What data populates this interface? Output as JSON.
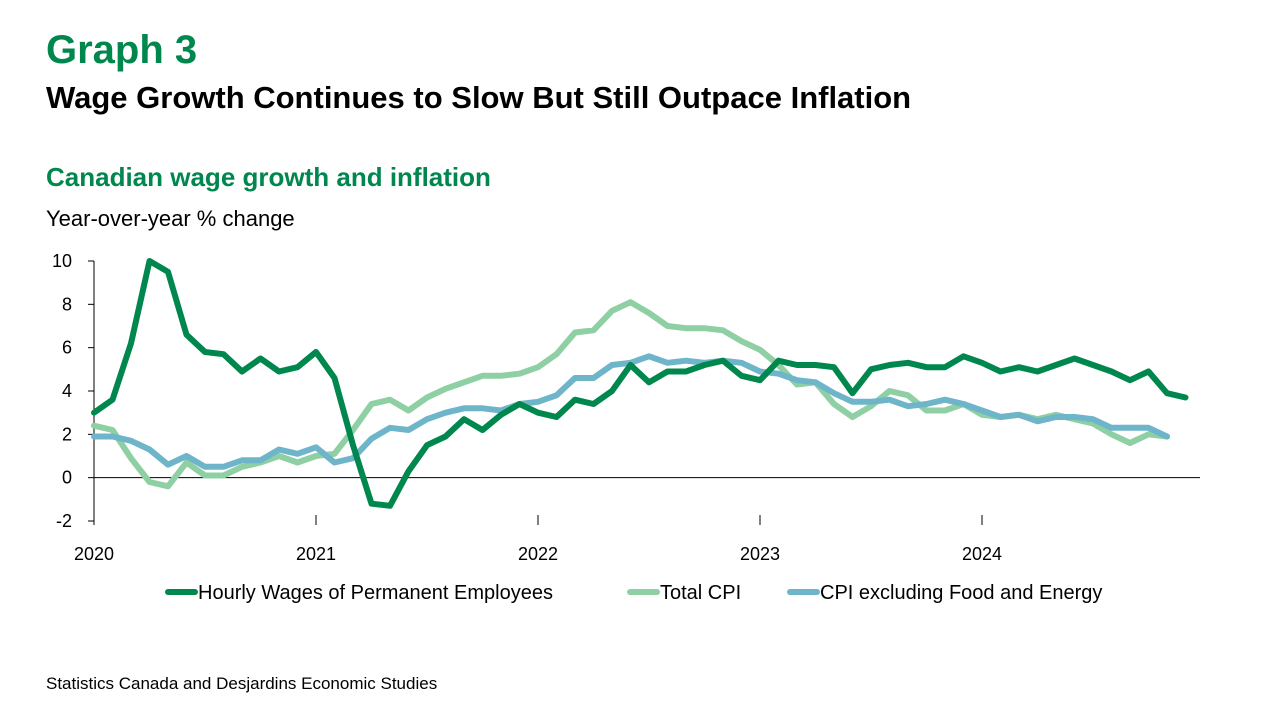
{
  "header": {
    "graph_number": "Graph 3",
    "title": "Wage Growth Continues to Slow But Still Outpace Inflation"
  },
  "footer": {
    "source": "Statistics Canada and Desjardins Economic Studies"
  },
  "chart_data": {
    "type": "line",
    "title": "Canadian wage growth and inflation",
    "ylabel": "Year-over-year % change",
    "xlabel": "",
    "ylim": [
      -2,
      10
    ],
    "yticks": [
      "10",
      "8",
      "6",
      "4",
      "2",
      "0",
      "-2"
    ],
    "xticks": [
      "2020",
      "2021",
      "2022",
      "2023",
      "2024"
    ],
    "grid": false,
    "legend_position": "bottom",
    "x_start": "2020-01",
    "x_frequency": "monthly",
    "series": [
      {
        "name": "Hourly Wages of Permanent Employees",
        "color": "#00874e",
        "values": [
          3.0,
          3.6,
          6.2,
          10.0,
          9.5,
          6.6,
          5.8,
          5.7,
          4.9,
          5.5,
          4.9,
          5.1,
          5.8,
          4.6,
          1.5,
          -1.2,
          -1.3,
          0.3,
          1.5,
          1.9,
          2.7,
          2.2,
          2.9,
          3.4,
          3.0,
          2.8,
          3.6,
          3.4,
          4.0,
          5.2,
          4.4,
          4.9,
          4.9,
          5.2,
          5.4,
          4.7,
          4.5,
          5.4,
          5.2,
          5.2,
          5.1,
          3.9,
          5.0,
          5.2,
          5.3,
          5.1,
          5.1,
          5.6,
          5.3,
          4.9,
          5.1,
          4.9,
          5.2,
          5.5,
          5.2,
          4.9,
          4.5,
          4.9,
          3.9,
          3.7
        ]
      },
      {
        "name": "Total CPI",
        "color": "#8ecfa3",
        "values": [
          2.4,
          2.2,
          0.9,
          -0.2,
          -0.4,
          0.7,
          0.1,
          0.1,
          0.5,
          0.7,
          1.0,
          0.7,
          1.0,
          1.1,
          2.2,
          3.4,
          3.6,
          3.1,
          3.7,
          4.1,
          4.4,
          4.7,
          4.7,
          4.8,
          5.1,
          5.7,
          6.7,
          6.8,
          7.7,
          8.1,
          7.6,
          7.0,
          6.9,
          6.9,
          6.8,
          6.3,
          5.9,
          5.2,
          4.3,
          4.4,
          3.4,
          2.8,
          3.3,
          4.0,
          3.8,
          3.1,
          3.1,
          3.4,
          2.9,
          2.8,
          2.9,
          2.7,
          2.9,
          2.7,
          2.5,
          2.0,
          1.6,
          2.0,
          1.9
        ]
      },
      {
        "name": "CPI excluding Food and Energy",
        "color": "#6fb5ca",
        "values": [
          1.9,
          1.9,
          1.7,
          1.3,
          0.6,
          1.0,
          0.5,
          0.5,
          0.8,
          0.8,
          1.3,
          1.1,
          1.4,
          0.7,
          0.9,
          1.8,
          2.3,
          2.2,
          2.7,
          3.0,
          3.2,
          3.2,
          3.1,
          3.4,
          3.5,
          3.8,
          4.6,
          4.6,
          5.2,
          5.3,
          5.6,
          5.3,
          5.4,
          5.3,
          5.4,
          5.3,
          4.9,
          4.8,
          4.5,
          4.4,
          3.9,
          3.5,
          3.5,
          3.6,
          3.3,
          3.4,
          3.6,
          3.4,
          3.1,
          2.8,
          2.9,
          2.6,
          2.8,
          2.8,
          2.7,
          2.3,
          2.3,
          2.3,
          1.9
        ]
      }
    ]
  }
}
